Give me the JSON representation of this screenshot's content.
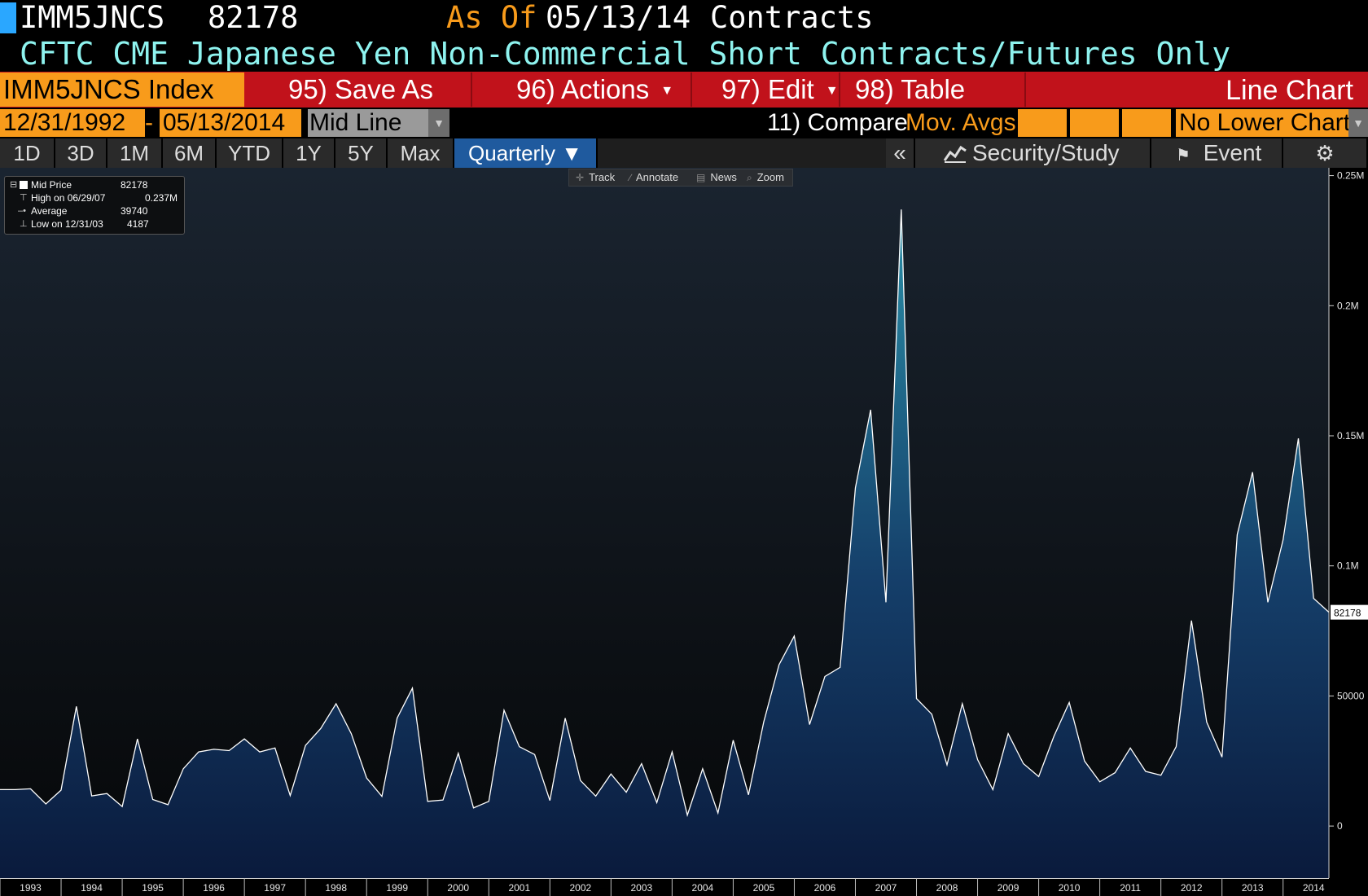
{
  "header": {
    "ticker": "IMM5JNCS",
    "last_value": "82178",
    "as_of_label": "As Of",
    "as_of_date": "05/13/14",
    "units": "Contracts",
    "description": "CFTC CME Japanese Yen Non-Commercial Short Contracts/Futures Only"
  },
  "toolbar": {
    "index_label": "IMM5JNCS Index",
    "save_as": "95) Save As",
    "actions": "96) Actions",
    "edit": "97) Edit",
    "table": "98) Table",
    "chart_type": "Line Chart"
  },
  "date_row": {
    "start_date": "12/31/1992",
    "end_date": "05/13/2014",
    "dash": "-",
    "line_mode": "Mid Line",
    "compare": "11) Compare",
    "mov_avgs": "Mov. Avgs",
    "lower_chart": "No Lower Chart"
  },
  "periods": [
    "1D",
    "3D",
    "1M",
    "6M",
    "YTD",
    "1Y",
    "5Y",
    "Max"
  ],
  "frequency": "Quarterly ▼",
  "right_controls": {
    "collapse": "«",
    "security_study": "Security/Study",
    "event": "Event"
  },
  "chart_tools": [
    "Track",
    "Annotate",
    "News",
    "Zoom"
  ],
  "legend": {
    "mid_label": "Mid Price",
    "mid_value": "82178",
    "high_label": "High on 06/29/07",
    "high_value": "0.237M",
    "avg_label": "Average",
    "avg_value": "39740",
    "low_label": "Low on 12/31/03",
    "low_value": "4187"
  },
  "colors": {
    "accent_orange": "#f89b1b",
    "toolbar_red": "#c1121b",
    "title_cyan": "#8ef3ef",
    "active_tab_blue": "#1f5a9e",
    "line_white": "#ffffff",
    "area_top": "#2a8fa8",
    "area_bottom": "#0a1a3c"
  },
  "chart_data": {
    "type": "area",
    "x_start": 1993.0,
    "x_step": 0.25,
    "values": [
      14000,
      14300,
      8500,
      13800,
      46000,
      11600,
      12500,
      7500,
      33500,
      10200,
      8200,
      22000,
      28500,
      29500,
      29000,
      33500,
      28500,
      30000,
      11700,
      31000,
      37500,
      47000,
      35500,
      18500,
      11400,
      41500,
      53000,
      9500,
      10000,
      28000,
      7000,
      9500,
      44500,
      30500,
      27500,
      9800,
      41500,
      17500,
      11500,
      20000,
      13000,
      24000,
      9000,
      28500,
      4187,
      22000,
      5000,
      33000,
      12000,
      40000,
      62000,
      73000,
      39000,
      57500,
      61000,
      130000,
      160000,
      86000,
      237000,
      49000,
      43000,
      23500,
      47000,
      25500,
      14000,
      35500,
      24000,
      19000,
      34500,
      47500,
      25000,
      17000,
      20500,
      30000,
      21000,
      19500,
      30500,
      79000,
      40000,
      26500,
      112000,
      136000,
      86000,
      110000,
      149000,
      87500,
      82178
    ],
    "xlim": [
      1992.75,
      2014.5
    ],
    "ylim": [
      -20000,
      253000
    ],
    "y_ticks": [
      0,
      50000,
      100000,
      150000,
      200000,
      250000
    ],
    "y_tick_labels": [
      "0",
      "50000",
      "0.1M",
      "0.15M",
      "0.2M",
      "0.25M"
    ],
    "x_tick_labels": [
      "1993",
      "1994",
      "1995",
      "1996",
      "1997",
      "1998",
      "1999",
      "2000",
      "2001",
      "2002",
      "2003",
      "2004",
      "2005",
      "2006",
      "2007",
      "2008",
      "2009",
      "2010",
      "2011",
      "2012",
      "2013",
      "2014"
    ],
    "last_value_label": "82178",
    "grid": false,
    "legend_position": "top-left"
  }
}
